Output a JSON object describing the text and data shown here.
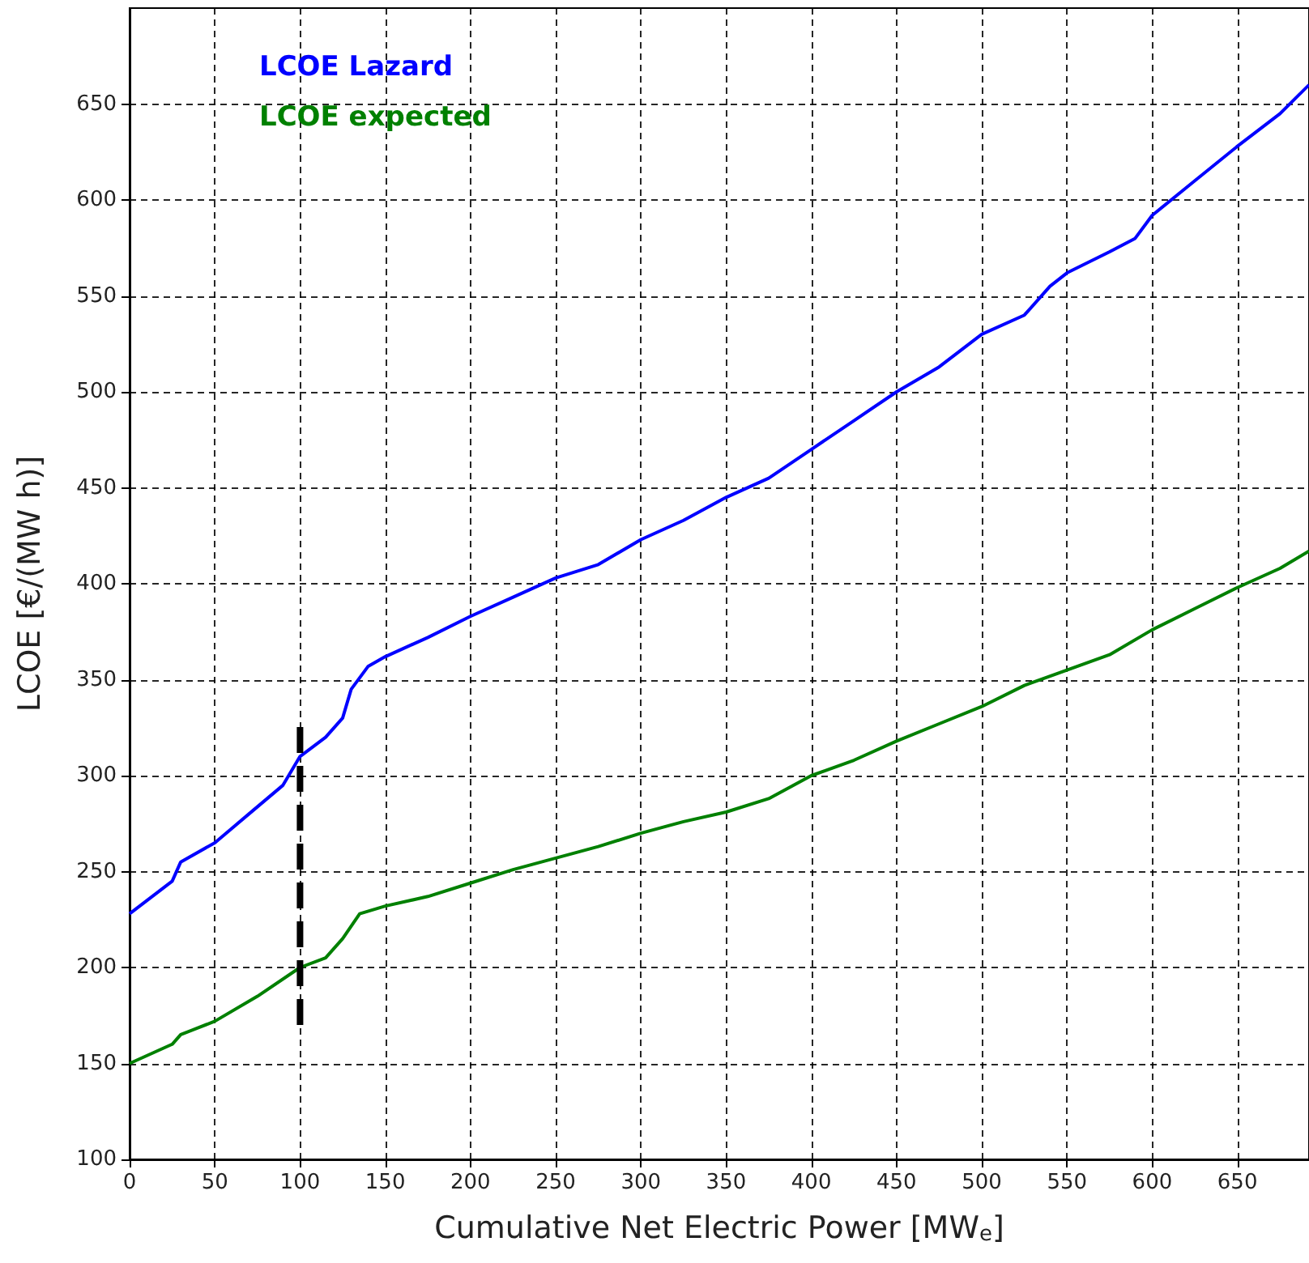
{
  "chart_data": {
    "type": "line",
    "xlabel": "Cumulative Net Electric Power [MW$_{e}$]",
    "ylabel": "LCOE [€/(MW h)]",
    "xlim": [
      0,
      692
    ],
    "ylim": [
      100,
      700
    ],
    "xticks": [
      0,
      50,
      100,
      150,
      200,
      250,
      300,
      350,
      400,
      450,
      500,
      550,
      600,
      650
    ],
    "yticks": [
      100,
      150,
      200,
      250,
      300,
      350,
      400,
      450,
      500,
      550,
      600,
      650
    ],
    "grid": true,
    "legend": "top left",
    "marker": "none",
    "series": [
      {
        "name": "LCOE Lazard",
        "color": "#0000ff",
        "x": [
          0,
          25,
          30,
          50,
          70,
          90,
          100,
          115,
          125,
          130,
          140,
          150,
          175,
          200,
          225,
          250,
          275,
          300,
          325,
          350,
          375,
          400,
          425,
          450,
          475,
          500,
          525,
          540,
          550,
          575,
          590,
          600,
          625,
          650,
          675,
          692
        ],
        "values": [
          228,
          245,
          255,
          265,
          280,
          295,
          310,
          320,
          330,
          345,
          357,
          362,
          372,
          383,
          393,
          403,
          410,
          423,
          433,
          445,
          455,
          470,
          485,
          500,
          513,
          530,
          540,
          555,
          562,
          573,
          580,
          592,
          610,
          628,
          645,
          660
        ]
      },
      {
        "name": "LCOE expected",
        "color": "#008000",
        "x": [
          0,
          25,
          30,
          50,
          75,
          100,
          115,
          125,
          135,
          150,
          175,
          200,
          225,
          250,
          275,
          300,
          325,
          350,
          375,
          400,
          425,
          450,
          475,
          500,
          525,
          550,
          575,
          600,
          625,
          650,
          675,
          692
        ],
        "values": [
          150,
          160,
          165,
          172,
          185,
          200,
          205,
          215,
          228,
          232,
          237,
          244,
          251,
          257,
          263,
          270,
          276,
          281,
          288,
          300,
          308,
          318,
          327,
          336,
          347,
          355,
          363,
          376,
          387,
          398,
          408,
          417
        ]
      },
      {
        "color": "#000000",
        "line_style": "dashed",
        "x": [
          100,
          100
        ],
        "values": [
          170,
          330
        ]
      }
    ]
  }
}
